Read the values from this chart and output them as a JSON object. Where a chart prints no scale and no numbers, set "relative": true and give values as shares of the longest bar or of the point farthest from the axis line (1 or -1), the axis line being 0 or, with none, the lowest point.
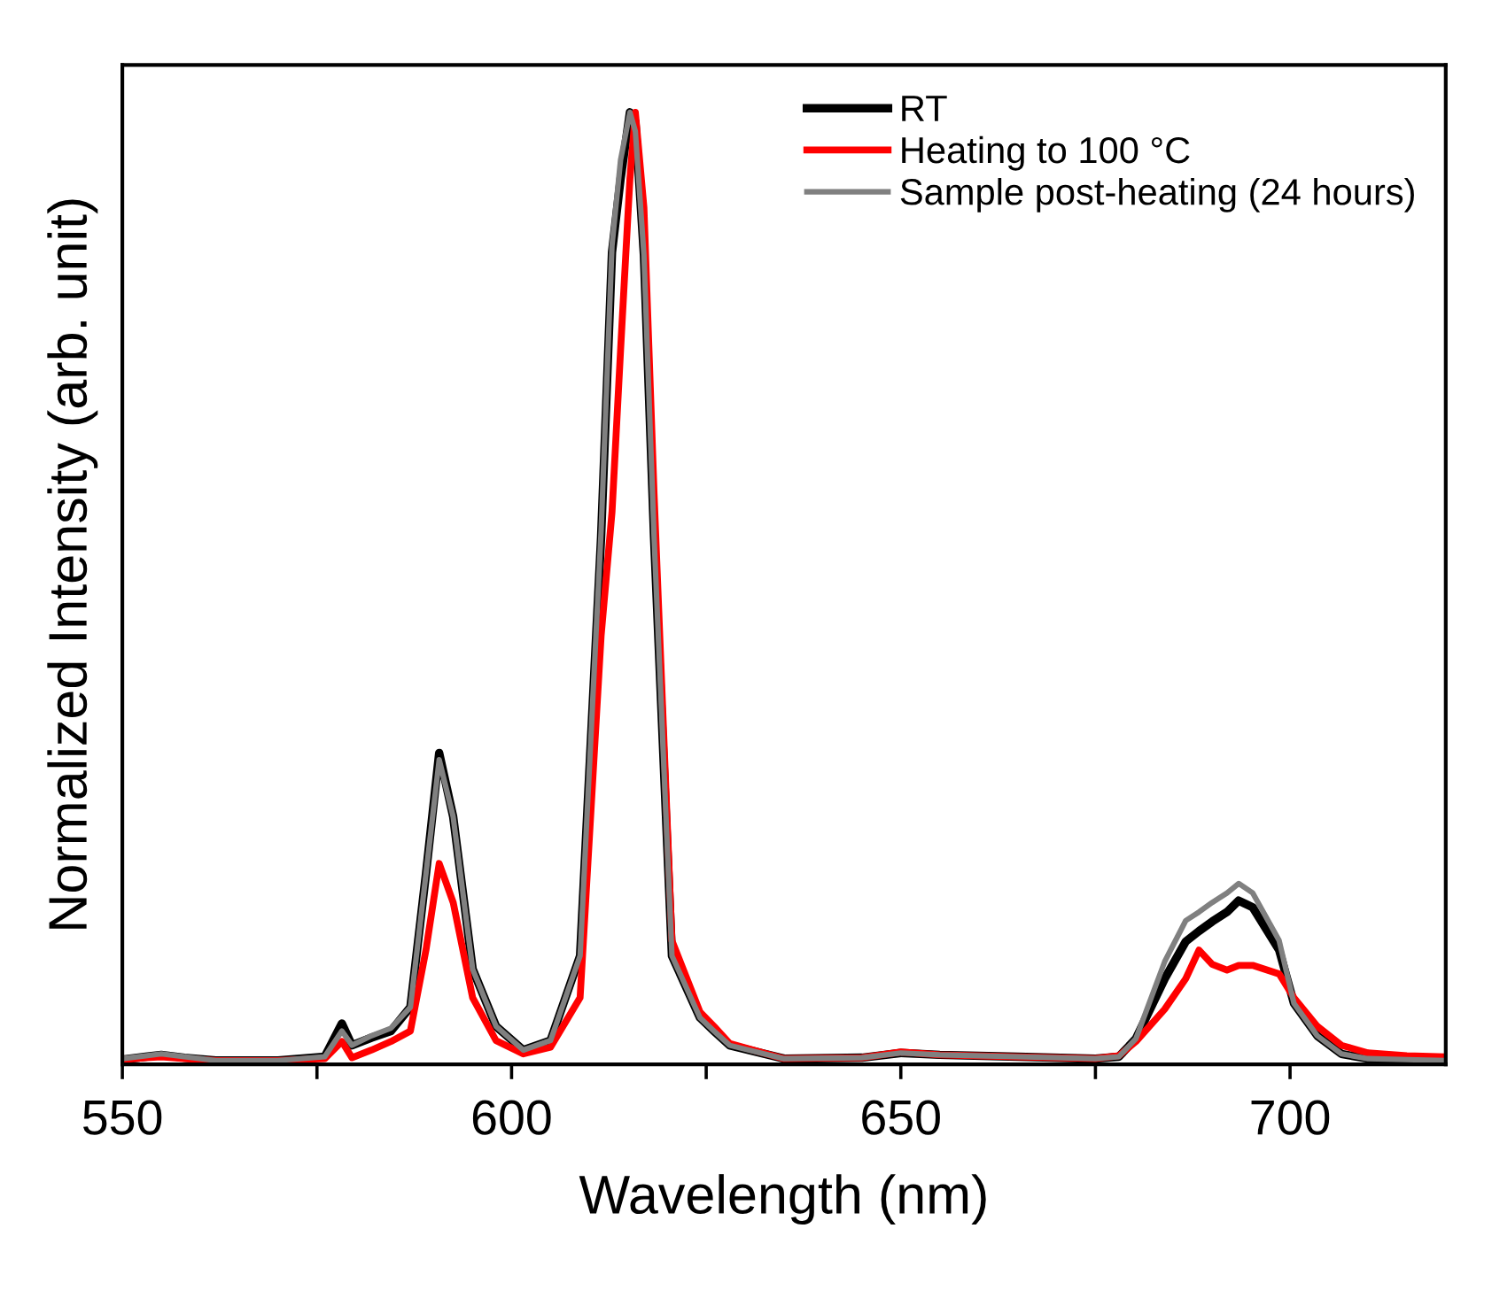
{
  "chart_data": {
    "type": "line",
    "relative": true,
    "xlabel": "Wavelength (nm)",
    "ylabel": "Normalized Intensity (arb. unit)",
    "xlim": [
      550,
      720
    ],
    "xticks": [
      550,
      {
        "value": 575,
        "label": null
      },
      600,
      {
        "value": 625,
        "label": null
      },
      650,
      {
        "value": 675,
        "label": null
      },
      700
    ],
    "x": [
      550,
      553,
      555,
      558,
      562,
      570,
      576,
      578.2,
      579.5,
      582,
      584.5,
      587,
      589,
      590.7,
      592.5,
      595,
      598,
      601.5,
      605,
      608.8,
      611.5,
      612.9,
      614,
      615.2,
      615.9,
      617,
      618.3,
      620.6,
      624.2,
      626,
      628,
      635,
      645,
      650,
      655,
      665,
      675,
      678,
      680.2,
      683.9,
      686.6,
      688.3,
      690,
      691.9,
      693.4,
      695.2,
      698.6,
      700.5,
      703.5,
      706.6,
      710,
      715,
      720
    ],
    "legend": "top right",
    "grid": false,
    "marker": "none",
    "line_style": "solid",
    "series": [
      {
        "name": "RT",
        "color": "#000000",
        "values": [
          0.005,
          0.008,
          0.01,
          0.007,
          0.004,
          0.004,
          0.008,
          0.043,
          0.02,
          0.028,
          0.035,
          0.06,
          0.2,
          0.327,
          0.26,
          0.1,
          0.04,
          0.015,
          0.025,
          0.114,
          0.554,
          0.853,
          0.93,
          1.0,
          0.99,
          0.85,
          0.554,
          0.114,
          0.049,
          0.035,
          0.02,
          0.006,
          0.007,
          0.012,
          0.01,
          0.008,
          0.006,
          0.008,
          0.027,
          0.09,
          0.129,
          0.14,
          0.15,
          0.16,
          0.172,
          0.165,
          0.12,
          0.064,
          0.03,
          0.011,
          0.006,
          0.005,
          0.004
        ]
      },
      {
        "name": "Heating to 100 °C",
        "color": "#ff0000",
        "values": [
          0.005,
          0.007,
          0.008,
          0.006,
          0.004,
          0.004,
          0.006,
          0.024,
          0.007,
          0.015,
          0.024,
          0.035,
          0.12,
          0.211,
          0.17,
          0.07,
          0.025,
          0.011,
          0.018,
          0.07,
          0.45,
          0.58,
          0.75,
          0.93,
          1.0,
          0.9,
          0.6,
          0.13,
          0.055,
          0.04,
          0.022,
          0.006,
          0.007,
          0.013,
          0.01,
          0.008,
          0.006,
          0.009,
          0.024,
          0.058,
          0.09,
          0.12,
          0.105,
          0.099,
          0.104,
          0.104,
          0.095,
          0.07,
          0.04,
          0.02,
          0.012,
          0.009,
          0.008
        ]
      },
      {
        "name": "Sample post-heating (24 hours)",
        "color": "#808080",
        "values": [
          0.006,
          0.009,
          0.011,
          0.008,
          0.004,
          0.004,
          0.008,
          0.035,
          0.02,
          0.03,
          0.038,
          0.06,
          0.2,
          0.32,
          0.26,
          0.1,
          0.04,
          0.015,
          0.025,
          0.114,
          0.56,
          0.86,
          0.95,
          1.0,
          0.98,
          0.85,
          0.554,
          0.114,
          0.049,
          0.035,
          0.02,
          0.006,
          0.007,
          0.012,
          0.01,
          0.008,
          0.006,
          0.008,
          0.027,
          0.108,
          0.151,
          0.16,
          0.17,
          0.18,
          0.19,
          0.18,
          0.13,
          0.064,
          0.03,
          0.011,
          0.006,
          0.005,
          0.004
        ]
      }
    ]
  }
}
